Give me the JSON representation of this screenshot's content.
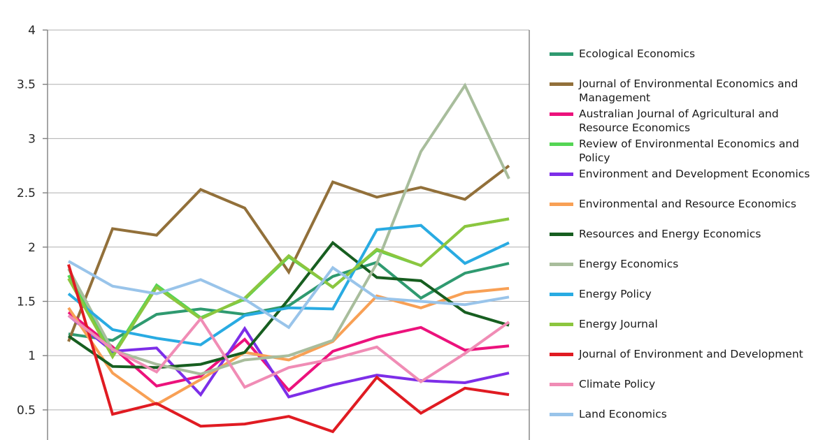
{
  "chart_data": {
    "type": "line",
    "title": "",
    "x": [
      1,
      2,
      3,
      4,
      5,
      6,
      7,
      8,
      9,
      10,
      11
    ],
    "x_axis_labels_visible": false,
    "ylim": [
      0.2,
      4
    ],
    "yticks": [
      4,
      3.5,
      3,
      2.5,
      2,
      1.5,
      1,
      0.5
    ],
    "grid": "horizontal",
    "legend_position": "right",
    "series": [
      {
        "name": "Ecological Economics",
        "color": "#2F9A70",
        "values": [
          1.2,
          1.14,
          1.38,
          1.43,
          1.38,
          1.46,
          1.73,
          1.86,
          1.53,
          1.76,
          1.85
        ]
      },
      {
        "name": "Journal of Environmental Economics and Management",
        "color": "#92703A",
        "values": [
          1.13,
          2.17,
          2.11,
          2.53,
          2.36,
          1.77,
          2.6,
          2.46,
          2.55,
          2.44,
          2.75
        ]
      },
      {
        "name": "Australian Journal of Agricultural and Resource Economics",
        "color": "#EC127C",
        "values": [
          1.4,
          1.08,
          0.72,
          0.81,
          1.15,
          0.68,
          1.04,
          1.17,
          1.26,
          1.05,
          1.09
        ]
      },
      {
        "name": "Review of Environmental Economics and Policy",
        "color": "#55D555",
        "values": [
          1.74,
          1.01,
          1.65,
          1.35,
          1.52,
          1.91,
          1.63,
          1.97,
          1.83,
          2.19,
          2.26
        ]
      },
      {
        "name": "Environment and Development Economics",
        "color": "#7D2EE8",
        "values": [
          1.37,
          1.04,
          1.07,
          0.64,
          1.25,
          0.62,
          0.73,
          0.82,
          0.77,
          0.75,
          0.84
        ]
      },
      {
        "name": "Environmental and Resource Economics",
        "color": "#F8A055",
        "values": [
          1.44,
          0.84,
          0.55,
          0.78,
          1.03,
          0.96,
          1.13,
          1.55,
          1.44,
          1.58,
          1.62
        ]
      },
      {
        "name": "Resources and Energy Economics",
        "color": "#175E20",
        "values": [
          1.18,
          0.9,
          0.89,
          0.92,
          1.03,
          1.52,
          2.04,
          1.72,
          1.69,
          1.4,
          1.28
        ]
      },
      {
        "name": "Energy Economics",
        "color": "#A8BD9C",
        "values": [
          1.8,
          1.05,
          0.92,
          0.83,
          0.96,
          1.0,
          1.14,
          1.85,
          2.88,
          3.49,
          2.63
        ]
      },
      {
        "name": "Energy Policy",
        "color": "#29ABE2",
        "values": [
          1.57,
          1.24,
          1.16,
          1.1,
          1.37,
          1.44,
          1.43,
          2.16,
          2.2,
          1.85,
          2.04
        ]
      },
      {
        "name": "Energy Journal",
        "color": "#8CC63F",
        "values": [
          1.71,
          0.99,
          1.63,
          1.34,
          1.53,
          1.92,
          1.63,
          1.98,
          1.83,
          2.19,
          2.26
        ]
      },
      {
        "name": "Journal of Environment and Development",
        "color": "#E01B22",
        "values": [
          1.84,
          0.46,
          0.56,
          0.35,
          0.37,
          0.44,
          0.3,
          0.8,
          0.47,
          0.7,
          0.64
        ]
      },
      {
        "name": "Climate Policy",
        "color": "#F08CB5",
        "values": [
          1.37,
          1.06,
          0.85,
          1.34,
          0.71,
          0.89,
          0.97,
          1.08,
          0.76,
          1.02,
          1.31
        ]
      },
      {
        "name": "Land Economics",
        "color": "#99C4EA",
        "values": [
          1.87,
          1.64,
          1.57,
          1.7,
          1.52,
          1.26,
          1.81,
          1.53,
          1.5,
          1.47,
          1.54
        ]
      }
    ]
  },
  "axes": {
    "y_tick_labels": [
      "4",
      "3.5",
      "3",
      "2.5",
      "2",
      "1.5",
      "1",
      "0.5"
    ]
  },
  "style": {
    "grid_color": "#AFAFAF",
    "axis_color": "#808080",
    "line_width": 4
  }
}
